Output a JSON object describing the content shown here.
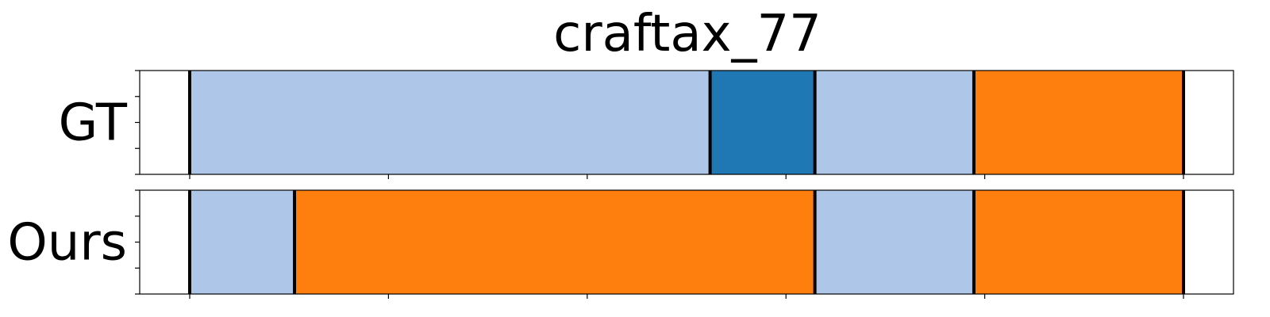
{
  "chart_data": {
    "type": "segmentation-timeline",
    "title": "craftax_77",
    "xlim": [
      0,
      275
    ],
    "x_ticks": [
      0,
      55,
      110,
      165,
      220,
      275
    ],
    "colors": {
      "light_blue": "#aec7e8",
      "dark_blue": "#1f77b4",
      "orange": "#ff7f0e"
    },
    "rows": [
      {
        "label": "GT",
        "segments": [
          {
            "start": 0,
            "end": 144,
            "color": "light_blue"
          },
          {
            "start": 144,
            "end": 173,
            "color": "dark_blue"
          },
          {
            "start": 173,
            "end": 217,
            "color": "light_blue"
          },
          {
            "start": 217,
            "end": 275,
            "color": "orange"
          }
        ]
      },
      {
        "label": "Ours",
        "segments": [
          {
            "start": 0,
            "end": 29,
            "color": "light_blue"
          },
          {
            "start": 29,
            "end": 173,
            "color": "orange"
          },
          {
            "start": 173,
            "end": 217,
            "color": "light_blue"
          },
          {
            "start": 217,
            "end": 275,
            "color": "orange"
          }
        ]
      }
    ]
  }
}
